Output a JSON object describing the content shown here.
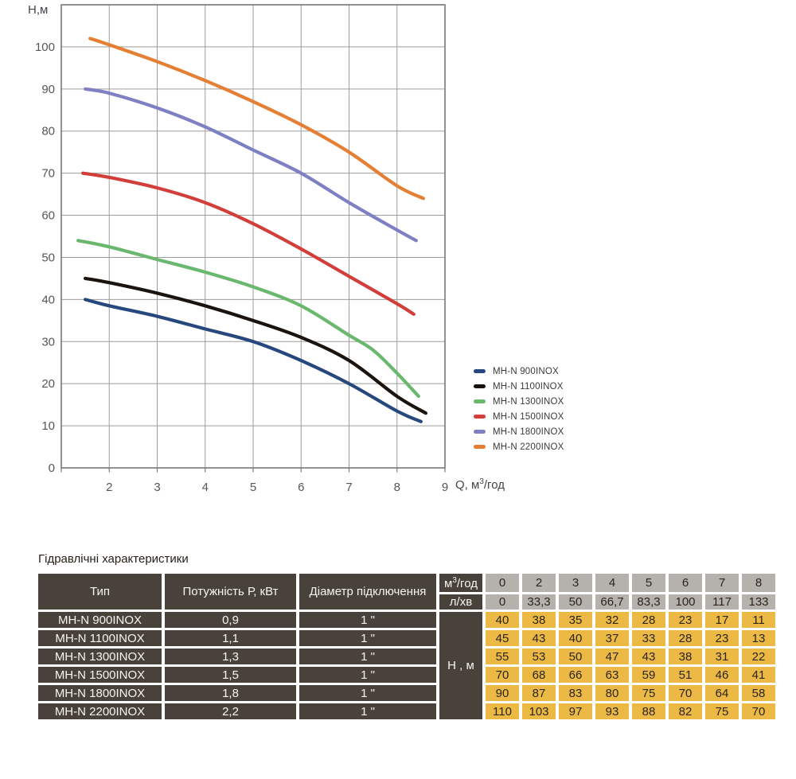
{
  "chart_data": {
    "type": "line",
    "title": "",
    "ylabel": "Н,м",
    "xlabel_parts": {
      "pre": "Q, м",
      "sup": "3",
      "post": "/год"
    },
    "xlim": [
      1,
      9
    ],
    "ylim": [
      0,
      110
    ],
    "x_ticks": [
      2,
      3,
      4,
      5,
      6,
      7,
      8,
      9
    ],
    "y_ticks": [
      0,
      10,
      20,
      30,
      40,
      50,
      60,
      70,
      80,
      90,
      100
    ],
    "grid": true,
    "legend_position": "right-bottom",
    "series": [
      {
        "name": "MH-N 900INOX",
        "color": "#27487e",
        "points": [
          [
            1.5,
            40
          ],
          [
            2,
            38.5
          ],
          [
            3,
            36
          ],
          [
            4,
            33
          ],
          [
            5,
            30
          ],
          [
            6,
            25.5
          ],
          [
            7,
            20
          ],
          [
            8,
            13.5
          ],
          [
            8.5,
            11
          ]
        ]
      },
      {
        "name": "MH-N 1100INOX",
        "color": "#1b140e",
        "points": [
          [
            1.5,
            45
          ],
          [
            2,
            44
          ],
          [
            3,
            41.5
          ],
          [
            4,
            38.5
          ],
          [
            5,
            35
          ],
          [
            6,
            31
          ],
          [
            7,
            25.5
          ],
          [
            8,
            17
          ],
          [
            8.6,
            13
          ]
        ]
      },
      {
        "name": "MH-N 1300INOX",
        "color": "#69b86e",
        "points": [
          [
            1.35,
            54
          ],
          [
            2,
            52.5
          ],
          [
            3,
            49.5
          ],
          [
            4,
            46.5
          ],
          [
            5,
            43
          ],
          [
            6,
            38.5
          ],
          [
            7,
            31.5
          ],
          [
            7.5,
            28
          ],
          [
            8,
            22.5
          ],
          [
            8.45,
            17
          ]
        ]
      },
      {
        "name": "MH-N 1500INOX",
        "color": "#d23f3a",
        "points": [
          [
            1.45,
            70
          ],
          [
            2,
            69
          ],
          [
            3,
            66.5
          ],
          [
            4,
            63
          ],
          [
            5,
            58
          ],
          [
            6,
            52
          ],
          [
            7,
            45.5
          ],
          [
            8,
            39
          ],
          [
            8.35,
            36.5
          ]
        ]
      },
      {
        "name": "MH-N 1800INOX",
        "color": "#7e80c3",
        "points": [
          [
            1.5,
            90
          ],
          [
            2,
            89
          ],
          [
            3,
            85.5
          ],
          [
            4,
            81
          ],
          [
            5,
            75.5
          ],
          [
            6,
            70
          ],
          [
            7,
            63
          ],
          [
            8,
            56.5
          ],
          [
            8.4,
            54
          ]
        ]
      },
      {
        "name": "MH-N 2200INOX",
        "color": "#e57f33",
        "points": [
          [
            1.6,
            102
          ],
          [
            2,
            100.5
          ],
          [
            3,
            96.5
          ],
          [
            4,
            92
          ],
          [
            5,
            87
          ],
          [
            6,
            81.5
          ],
          [
            7,
            75
          ],
          [
            8,
            67
          ],
          [
            8.55,
            64
          ]
        ]
      }
    ]
  },
  "colors": {
    "grid_line": "#9d9d9d",
    "grid_border": "#777777",
    "tick_text": "#56565a",
    "axis_text": "#44444a",
    "table_dark": "#49423a",
    "table_gray": "#b5b2ad",
    "table_yellow": "#ecb945"
  },
  "table": {
    "title": "Гідравлічні характеристики",
    "col_type": "Тип",
    "col_power": "Потужність  Р, кВт",
    "col_diameter": "Діаметр підключення",
    "unit_flow_parts": {
      "pre": "м",
      "sup": "3",
      "post": "/год"
    },
    "unit_lmin": "л/хв",
    "h_label": "Н , м",
    "flow_values": [
      "0",
      "2",
      "3",
      "4",
      "5",
      "6",
      "7",
      "8"
    ],
    "lmin_values": [
      "0",
      "33,3",
      "50",
      "66,7",
      "83,3",
      "100",
      "117",
      "133"
    ],
    "rows": [
      {
        "type": "MH-N 900INOX",
        "power": "0,9",
        "diameter": "1 \"",
        "heads": [
          "40",
          "38",
          "35",
          "32",
          "28",
          "23",
          "17",
          "11"
        ]
      },
      {
        "type": "MH-N 1100INOX",
        "power": "1,1",
        "diameter": "1 \"",
        "heads": [
          "45",
          "43",
          "40",
          "37",
          "33",
          "28",
          "23",
          "13"
        ]
      },
      {
        "type": "MH-N 1300INOX",
        "power": "1,3",
        "diameter": "1 \"",
        "heads": [
          "55",
          "53",
          "50",
          "47",
          "43",
          "38",
          "31",
          "22"
        ]
      },
      {
        "type": "MH-N 1500INOX",
        "power": "1,5",
        "diameter": "1 \"",
        "heads": [
          "70",
          "68",
          "66",
          "63",
          "59",
          "51",
          "46",
          "41"
        ]
      },
      {
        "type": "MH-N 1800INOX",
        "power": "1,8",
        "diameter": "1 \"",
        "heads": [
          "90",
          "87",
          "83",
          "80",
          "75",
          "70",
          "64",
          "58"
        ]
      },
      {
        "type": "MH-N 2200INOX",
        "power": "2,2",
        "diameter": "1 \"",
        "heads": [
          "110",
          "103",
          "97",
          "93",
          "88",
          "82",
          "75",
          "70"
        ]
      }
    ]
  }
}
